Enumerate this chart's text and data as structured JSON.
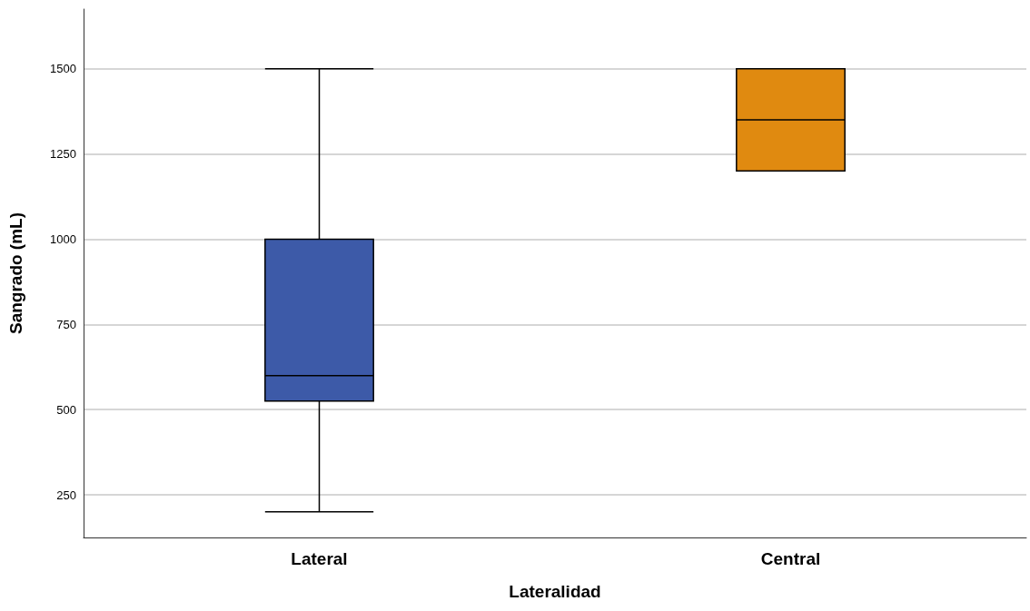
{
  "chart_data": {
    "type": "box",
    "xlabel": "Lateralidad",
    "ylabel": "Sangrado (mL)",
    "categories": [
      "Lateral",
      "Central"
    ],
    "boxes": [
      {
        "low": 200,
        "q1": 525,
        "median": 600,
        "q3": 1000,
        "high": 1500
      },
      {
        "low": 1200,
        "q1": 1200,
        "median": 1350,
        "q3": 1500,
        "high": 1500
      }
    ],
    "colors": [
      "#3d5aa8",
      "#e08a10"
    ],
    "ylim": [
      125,
      1675
    ],
    "yticks": [
      250,
      500,
      750,
      1000,
      1250,
      1500
    ],
    "grid": "y"
  }
}
